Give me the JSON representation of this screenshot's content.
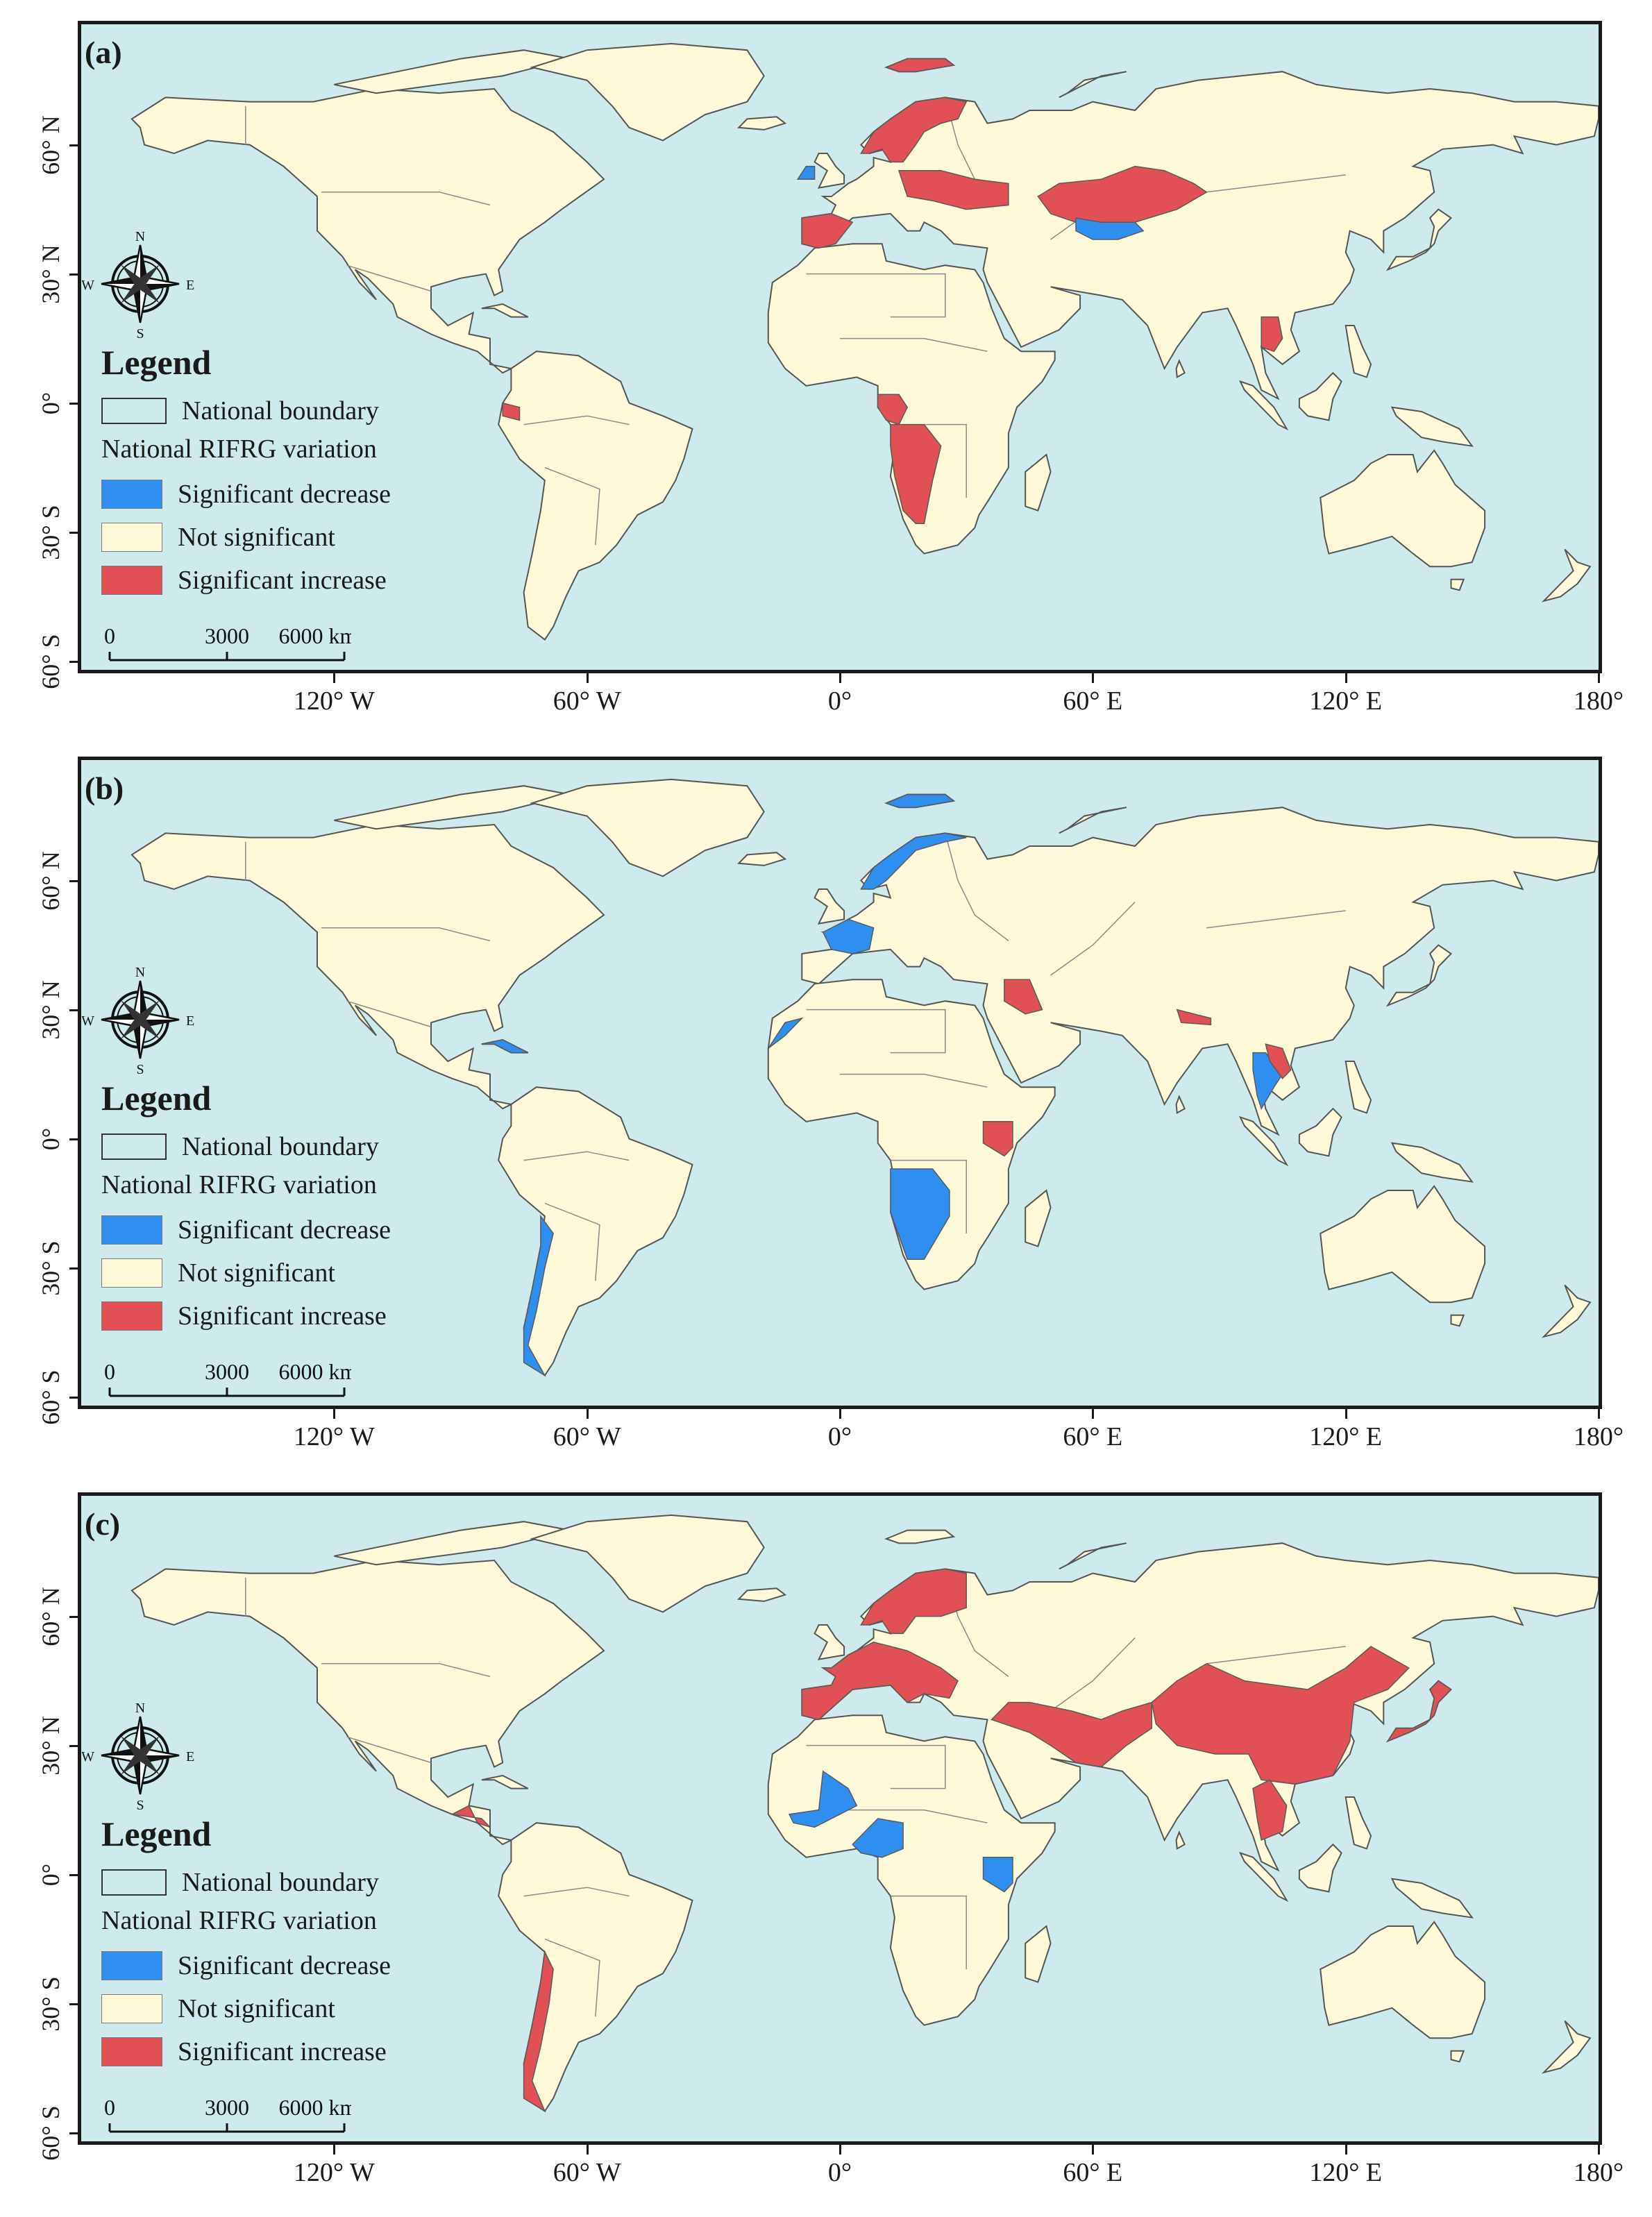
{
  "legend": {
    "title": "Legend",
    "boundary_label": "National boundary",
    "subtitle": "National RIFRG variation",
    "items": [
      {
        "label": "Significant decrease",
        "color": "#2e8ff0"
      },
      {
        "label": "Not significant",
        "color": "#fcf8d8"
      },
      {
        "label": "Significant increase",
        "color": "#e05054"
      }
    ],
    "scale_labels": [
      "0",
      "3000",
      "6000 km"
    ]
  },
  "compass": {
    "n": "N",
    "s": "S",
    "e": "E",
    "w": "W"
  },
  "y_ticks": [
    "60° N",
    "30° N",
    "0°",
    "30° S",
    "60° S"
  ],
  "x_ticks": [
    "120° W",
    "60° W",
    "0°",
    "60° E",
    "120° E",
    "180°"
  ],
  "colors": {
    "ocean": "#cfeaec",
    "land": "#fcf8d8",
    "decrease": "#2e8ff0",
    "increase": "#e05054",
    "border": "#555555"
  },
  "panels": [
    {
      "label": "(a)",
      "regions": [
        {
          "name": "Scandinavia",
          "status": "increase"
        },
        {
          "name": "Svalbard",
          "status": "increase"
        },
        {
          "name": "Eastern Europe",
          "status": "increase"
        },
        {
          "name": "Iberia",
          "status": "increase"
        },
        {
          "name": "Kazakhstan",
          "status": "increase"
        },
        {
          "name": "Uzbekistan",
          "status": "decrease"
        },
        {
          "name": "Ireland",
          "status": "decrease"
        },
        {
          "name": "Central Africa",
          "status": "increase"
        },
        {
          "name": "Angola",
          "status": "increase"
        },
        {
          "name": "Ecuador",
          "status": "increase"
        },
        {
          "name": "Indochina",
          "status": "increase"
        }
      ]
    },
    {
      "label": "(b)",
      "regions": [
        {
          "name": "Norway",
          "status": "decrease"
        },
        {
          "name": "Svalbard",
          "status": "decrease"
        },
        {
          "name": "France",
          "status": "decrease"
        },
        {
          "name": "Western Sahara",
          "status": "decrease"
        },
        {
          "name": "Angola/Namibia",
          "status": "decrease"
        },
        {
          "name": "Chile",
          "status": "decrease"
        },
        {
          "name": "Cuba",
          "status": "decrease"
        },
        {
          "name": "Thailand",
          "status": "decrease"
        },
        {
          "name": "Iraq",
          "status": "increase"
        },
        {
          "name": "Kenya",
          "status": "increase"
        },
        {
          "name": "Nepal",
          "status": "increase"
        },
        {
          "name": "Laos",
          "status": "increase"
        }
      ]
    },
    {
      "label": "(c)",
      "regions": [
        {
          "name": "China",
          "status": "increase"
        },
        {
          "name": "Central Asia",
          "status": "increase"
        },
        {
          "name": "Europe",
          "status": "increase"
        },
        {
          "name": "Scandinavia",
          "status": "increase"
        },
        {
          "name": "Japan",
          "status": "increase"
        },
        {
          "name": "Chile",
          "status": "increase"
        },
        {
          "name": "Central America",
          "status": "increase"
        },
        {
          "name": "Indochina",
          "status": "increase"
        },
        {
          "name": "Mali",
          "status": "decrease"
        },
        {
          "name": "Nigeria/Cameroon",
          "status": "decrease"
        },
        {
          "name": "Kenya",
          "status": "decrease"
        }
      ]
    }
  ]
}
